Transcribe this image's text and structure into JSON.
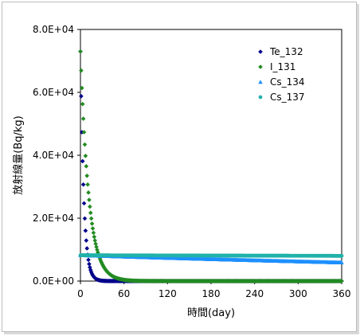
{
  "chart_data": {
    "type": "scatter",
    "xlabel": "時間(day)",
    "ylabel": "放射線量(Bq/kg)",
    "xlim": [
      0,
      360
    ],
    "ylim": [
      0,
      80000
    ],
    "x_ticks": [
      "0",
      "60",
      "120",
      "180",
      "240",
      "300",
      "360"
    ],
    "y_ticks": [
      "0.0E+00",
      "2.0E+04",
      "4.0E+04",
      "6.0E+04",
      "8.0E+04"
    ],
    "x_tick_values": [
      0,
      60,
      120,
      180,
      240,
      300,
      360
    ],
    "y_tick_values": [
      0,
      20000,
      40000,
      60000,
      80000
    ],
    "grid": false,
    "legend_position": "top-right",
    "series": [
      {
        "name": "Te_132",
        "marker": "diamond",
        "color": "#00008b",
        "model": "exponential_decay",
        "initial_value": 73000,
        "half_life_days": 3.2,
        "x_start": 0,
        "x_end": 360,
        "x_step": 1
      },
      {
        "name": "I_131",
        "marker": "diamond",
        "color": "#228b22",
        "model": "exponential_decay",
        "initial_value": 73000,
        "half_life_days": 8.0,
        "x_start": 0,
        "x_end": 360,
        "x_step": 1
      },
      {
        "name": "Cs_134",
        "marker": "triangle",
        "color": "#1e90ff",
        "model": "exponential_decay",
        "initial_value": 8200,
        "half_life_days": 752,
        "x_start": 0,
        "x_end": 360,
        "x_step": 1
      },
      {
        "name": "Cs_137",
        "marker": "circle",
        "color": "#20b2aa",
        "model": "exponential_decay",
        "initial_value": 8200,
        "half_life_days": 11000,
        "x_start": 0,
        "x_end": 360,
        "x_step": 1
      }
    ]
  }
}
